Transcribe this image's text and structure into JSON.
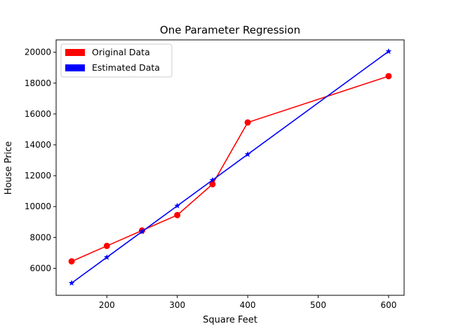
{
  "chart_data": {
    "type": "line",
    "title": "One Parameter Regression",
    "xlabel": "Square Feet",
    "ylabel": "House Price",
    "xlim": [
      128,
      622
    ],
    "ylim": [
      4250,
      20800
    ],
    "xticks": [
      200,
      300,
      400,
      500,
      600
    ],
    "yticks": [
      6000,
      8000,
      10000,
      12000,
      14000,
      16000,
      18000,
      20000
    ],
    "grid": false,
    "legend_position": "upper-left",
    "series": [
      {
        "name": "Original Data",
        "color": "#ff0000",
        "marker": "circle",
        "x": [
          150,
          200,
          250,
          300,
          350,
          400,
          600
        ],
        "y": [
          6450,
          7450,
          8450,
          9450,
          11450,
          15450,
          18450
        ]
      },
      {
        "name": "Estimated Data",
        "color": "#0000ff",
        "marker": "star",
        "x": [
          150,
          200,
          250,
          300,
          350,
          400,
          600
        ],
        "y": [
          5044,
          6712,
          8380,
          10048,
          11716,
          13384,
          20055
        ]
      }
    ]
  }
}
